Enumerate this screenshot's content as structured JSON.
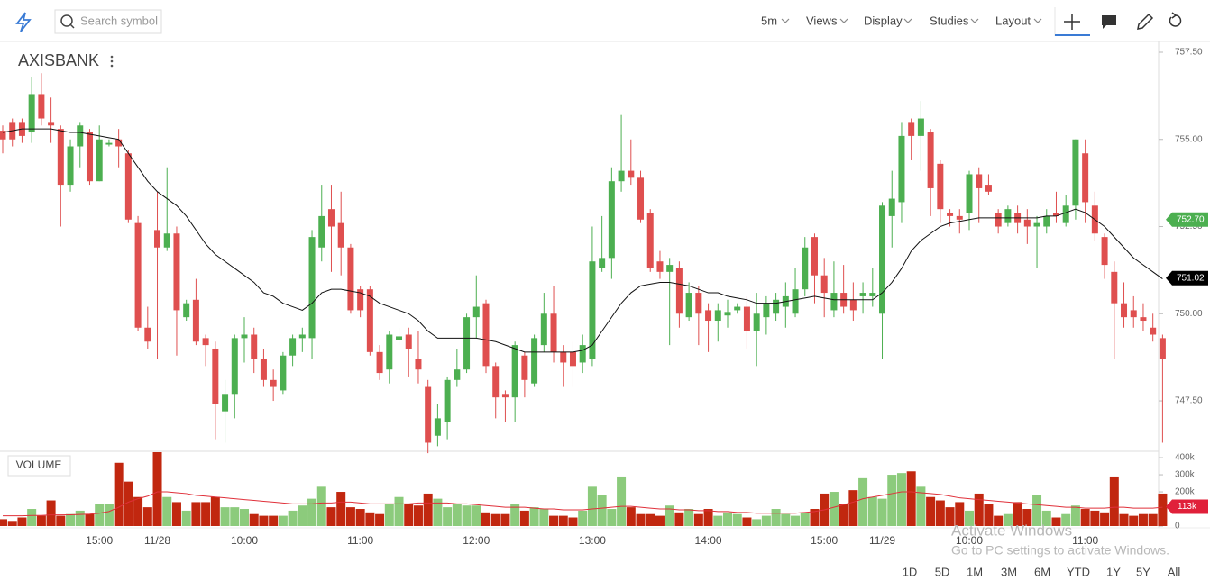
{
  "toolbar": {
    "search_placeholder": "Search symbol",
    "interval": "5m",
    "menus": [
      "Views",
      "Display",
      "Studies",
      "Layout"
    ]
  },
  "chart_data": [
    {
      "type": "candlestick",
      "title": "AXISBANK",
      "up_color": "#4caf50",
      "down_color": "#df4f4f",
      "ma_color": "#111111",
      "categories": [
        null,
        null,
        null,
        null,
        null,
        null,
        null,
        null,
        null,
        null,
        "15:00",
        null,
        null,
        null,
        null,
        null,
        "11/28",
        null,
        null,
        null,
        null,
        null,
        null,
        null,
        null,
        "10:00",
        null,
        null,
        null,
        null,
        null,
        null,
        null,
        null,
        null,
        null,
        null,
        "11:00",
        null,
        null,
        null,
        null,
        null,
        null,
        null,
        null,
        null,
        null,
        null,
        "12:00",
        null,
        null,
        null,
        null,
        null,
        null,
        null,
        null,
        null,
        null,
        null,
        "13:00",
        null,
        null,
        null,
        null,
        null,
        null,
        null,
        null,
        null,
        null,
        null,
        "14:00",
        null,
        null,
        null,
        null,
        null,
        null,
        null,
        null,
        null,
        null,
        null,
        "15:00",
        null,
        null,
        null,
        null,
        null,
        "11/29",
        null,
        null,
        null,
        null,
        null,
        null,
        null,
        null,
        "10:00",
        null,
        null,
        null,
        null,
        null,
        null,
        null,
        null,
        null,
        null,
        null,
        "11:00",
        null,
        null,
        null,
        null,
        null,
        null,
        null,
        null
      ],
      "open": [
        755.25,
        755.5,
        755.5,
        755.2,
        756.3,
        755.5,
        755.3,
        753.7,
        754.8,
        755.2,
        753.8,
        754.85,
        755.0,
        754.6,
        752.6,
        749.6,
        752.4,
        751.9,
        752.3,
        749.9,
        750.4,
        749.3,
        749.0,
        747.2,
        747.7,
        749.3,
        749.4,
        748.7,
        748.1,
        747.8,
        748.8,
        749.3,
        749.3,
        751.9,
        753.0,
        752.6,
        751.9,
        750.7,
        750.7,
        748.9,
        748.4,
        749.25,
        749.4,
        748.7,
        747.9,
        746.5,
        746.9,
        748.1,
        748.4,
        749.9,
        750.3,
        748.5,
        747.7,
        747.6,
        748.8,
        748.0,
        749.1,
        750.0,
        748.9,
        748.9,
        748.6,
        748.7,
        751.3,
        751.6,
        753.8,
        754.1,
        753.9,
        752.9,
        751.5,
        751.2,
        751.3,
        749.9,
        750.6,
        750.1,
        749.8,
        749.95,
        750.1,
        750.2,
        749.5,
        749.9,
        750.0,
        750.2,
        750.0,
        750.7,
        752.2,
        751.1,
        750.1,
        750.6,
        750.4,
        750.5,
        750.5,
        750.0,
        752.8,
        753.2,
        755.5,
        755.1,
        755.2,
        754.3,
        752.9,
        752.8,
        752.9,
        754.0,
        753.7,
        752.9,
        752.6,
        752.9,
        752.7,
        752.5,
        752.5,
        752.9,
        752.6,
        753.1,
        754.6,
        753.1,
        752.2,
        751.2,
        750.3,
        750.1,
        749.9,
        749.6,
        749.3
      ],
      "high": [
        755.4,
        755.6,
        755.6,
        756.8,
        756.9,
        756.2,
        755.4,
        755.0,
        755.5,
        755.3,
        755.4,
        755.0,
        755.3,
        754.7,
        752.8,
        750.2,
        753.5,
        754.2,
        752.5,
        750.4,
        751.0,
        749.4,
        749.2,
        748.1,
        749.4,
        749.9,
        749.6,
        749.0,
        748.4,
        748.9,
        749.4,
        749.6,
        752.4,
        753.7,
        753.7,
        753.5,
        752.0,
        750.8,
        750.8,
        749.1,
        749.5,
        749.6,
        749.6,
        749.5,
        748.1,
        747.4,
        748.2,
        749.0,
        750.0,
        751.1,
        750.4,
        748.6,
        747.8,
        749.2,
        748.9,
        749.4,
        750.6,
        750.8,
        749.1,
        749.2,
        749.4,
        752.5,
        752.8,
        754.2,
        755.7,
        755.0,
        754.1,
        753.0,
        751.8,
        751.6,
        751.5,
        750.9,
        750.8,
        750.3,
        750.3,
        750.4,
        750.3,
        750.5,
        750.6,
        750.5,
        750.6,
        750.9,
        751.3,
        752.2,
        752.3,
        751.6,
        751.5,
        751.4,
        750.9,
        750.9,
        751.3,
        753.2,
        754.1,
        755.5,
        755.6,
        756.1,
        755.3,
        754.4,
        753.0,
        753.0,
        754.1,
        754.2,
        754.0,
        753.0,
        753.1,
        753.1,
        753.0,
        752.8,
        753.0,
        753.5,
        753.4,
        755.0,
        755.0,
        753.5,
        752.3,
        751.5,
        750.9,
        750.5,
        750.3,
        750.0,
        749.4
      ],
      "low": [
        754.6,
        754.8,
        754.9,
        754.9,
        755.4,
        754.9,
        752.5,
        753.5,
        754.2,
        753.7,
        753.8,
        754.8,
        754.2,
        752.6,
        749.5,
        749.0,
        748.7,
        751.8,
        748.8,
        749.8,
        749.1,
        748.5,
        746.4,
        746.3,
        747.0,
        748.6,
        748.3,
        747.9,
        747.5,
        747.7,
        748.5,
        748.9,
        748.7,
        751.5,
        751.2,
        751.1,
        750.0,
        749.9,
        748.8,
        748.1,
        748.0,
        749.1,
        748.2,
        748.0,
        746.0,
        746.2,
        746.4,
        747.9,
        748.3,
        749.3,
        748.3,
        747.0,
        746.9,
        746.9,
        747.6,
        747.9,
        748.9,
        748.6,
        747.9,
        747.9,
        748.3,
        748.5,
        751.2,
        751.0,
        753.5,
        753.7,
        752.6,
        751.2,
        751.0,
        749.1,
        749.6,
        749.8,
        749.1,
        748.9,
        749.2,
        749.6,
        750.0,
        749.0,
        748.5,
        749.4,
        749.8,
        749.6,
        749.9,
        750.5,
        750.3,
        749.9,
        749.9,
        750.0,
        749.8,
        750.0,
        750.2,
        748.7,
        751.9,
        752.6,
        754.4,
        754.1,
        752.8,
        752.6,
        752.5,
        752.3,
        752.4,
        752.6,
        753.4,
        752.3,
        752.5,
        752.3,
        752.0,
        751.3,
        752.3,
        752.6,
        752.5,
        752.7,
        752.6,
        752.1,
        751.0,
        748.7,
        749.6,
        749.6,
        749.5,
        749.2,
        746.3
      ],
      "close": [
        755.0,
        755.0,
        755.1,
        756.3,
        755.6,
        755.4,
        753.7,
        754.8,
        755.4,
        753.8,
        755.0,
        754.9,
        754.8,
        752.7,
        749.6,
        749.2,
        751.9,
        752.3,
        750.1,
        750.3,
        749.2,
        749.1,
        747.4,
        747.7,
        749.3,
        749.4,
        748.7,
        748.1,
        747.9,
        748.8,
        749.3,
        749.4,
        752.2,
        752.8,
        752.5,
        751.9,
        750.1,
        750.1,
        748.9,
        748.3,
        749.4,
        749.35,
        749.0,
        748.4,
        746.3,
        747.0,
        748.1,
        748.4,
        749.9,
        750.2,
        748.5,
        747.6,
        747.6,
        749.1,
        748.1,
        749.3,
        750.0,
        748.9,
        748.6,
        748.5,
        749.1,
        751.5,
        751.6,
        753.8,
        754.1,
        753.9,
        752.7,
        751.3,
        751.2,
        751.4,
        750.0,
        750.6,
        750.0,
        749.8,
        750.1,
        750.05,
        750.2,
        749.5,
        750.0,
        750.3,
        750.4,
        750.5,
        750.7,
        751.9,
        751.1,
        750.6,
        750.6,
        750.2,
        750.1,
        750.6,
        750.6,
        753.1,
        753.3,
        755.1,
        755.1,
        755.6,
        753.6,
        753.0,
        752.8,
        752.7,
        754.0,
        753.6,
        753.5,
        752.5,
        753.0,
        752.6,
        752.5,
        752.6,
        752.8,
        752.8,
        753.1,
        755.0,
        753.2,
        752.3,
        751.4,
        750.3,
        749.9,
        749.9,
        749.8,
        749.4,
        748.7
      ],
      "ma": [
        755.2,
        755.25,
        755.3,
        755.3,
        755.3,
        755.3,
        755.25,
        755.2,
        755.2,
        755.15,
        755.1,
        755.05,
        755.0,
        754.6,
        754.2,
        753.8,
        753.5,
        753.3,
        753.1,
        752.8,
        752.4,
        752.0,
        751.7,
        751.5,
        751.3,
        751.1,
        750.9,
        750.6,
        750.5,
        750.3,
        750.2,
        750.1,
        750.3,
        750.6,
        750.7,
        750.7,
        750.65,
        750.6,
        750.5,
        750.3,
        750.2,
        750.1,
        750.0,
        749.8,
        749.5,
        749.3,
        749.3,
        749.3,
        749.3,
        749.3,
        749.25,
        749.2,
        749.1,
        749.0,
        748.9,
        748.9,
        748.9,
        748.9,
        748.9,
        748.9,
        748.95,
        749.1,
        749.5,
        749.9,
        750.3,
        750.6,
        750.8,
        750.85,
        750.9,
        750.9,
        750.85,
        750.8,
        750.7,
        750.6,
        750.6,
        750.5,
        750.45,
        750.4,
        750.3,
        750.3,
        750.3,
        750.35,
        750.4,
        750.45,
        750.5,
        750.45,
        750.4,
        750.4,
        750.4,
        750.4,
        750.4,
        750.6,
        750.9,
        751.3,
        751.8,
        752.1,
        752.3,
        752.5,
        752.6,
        752.65,
        752.7,
        752.75,
        752.75,
        752.75,
        752.75,
        752.75,
        752.75,
        752.75,
        752.8,
        752.8,
        752.9,
        753.0,
        752.9,
        752.7,
        752.5,
        752.2,
        751.9,
        751.6,
        751.4,
        751.2,
        751.0
      ],
      "ylim": [
        746.08,
        757.81
      ],
      "yticks": [
        {
          "value": 747.5,
          "label": "747.50"
        },
        {
          "value": 750,
          "label": "750.00"
        },
        {
          "value": 752.5,
          "label": "752.50"
        },
        {
          "value": 755,
          "label": "755.00"
        },
        {
          "value": 757.5,
          "label": "757.50"
        }
      ],
      "price_tags": [
        {
          "value": 752.7,
          "label": "752.70",
          "color": "#4caf50"
        },
        {
          "value": 751.02,
          "label": "751.02",
          "color": "#000000"
        }
      ]
    },
    {
      "type": "bar",
      "title": "VOLUME",
      "up_color": "#8ccb7c",
      "down_color": "#c1270f",
      "ma_color": "#e0303a",
      "values": [
        40000,
        30000,
        50000,
        100000,
        60000,
        150000,
        60000,
        70000,
        90000,
        70000,
        130000,
        130000,
        370000,
        260000,
        170000,
        110000,
        432000,
        170000,
        140000,
        90000,
        140000,
        140000,
        170000,
        110000,
        110000,
        100000,
        70000,
        60000,
        60000,
        60000,
        90000,
        120000,
        160000,
        230000,
        110000,
        200000,
        110000,
        100000,
        80000,
        70000,
        130000,
        170000,
        130000,
        120000,
        190000,
        160000,
        110000,
        130000,
        120000,
        120000,
        80000,
        70000,
        70000,
        130000,
        90000,
        110000,
        100000,
        60000,
        60000,
        50000,
        90000,
        230000,
        180000,
        100000,
        290000,
        110000,
        70000,
        70000,
        60000,
        120000,
        80000,
        100000,
        70000,
        100000,
        60000,
        80000,
        70000,
        50000,
        40000,
        60000,
        100000,
        70000,
        60000,
        80000,
        100000,
        190000,
        200000,
        130000,
        210000,
        280000,
        170000,
        160000,
        300000,
        310000,
        320000,
        230000,
        170000,
        150000,
        110000,
        140000,
        90000,
        190000,
        130000,
        60000,
        70000,
        140000,
        100000,
        180000,
        90000,
        50000,
        70000,
        120000,
        100000,
        90000,
        80000,
        290000,
        70000,
        60000,
        70000,
        70000,
        190000
      ],
      "ma": [
        60000,
        60000,
        60000,
        62000,
        62000,
        65000,
        65000,
        66000,
        68000,
        70000,
        75000,
        85000,
        110000,
        140000,
        160000,
        175000,
        200000,
        200000,
        195000,
        190000,
        180000,
        175000,
        170000,
        165000,
        160000,
        155000,
        150000,
        145000,
        140000,
        135000,
        130000,
        130000,
        130000,
        135000,
        135000,
        140000,
        140000,
        135000,
        130000,
        130000,
        130000,
        130000,
        130000,
        135000,
        135000,
        135000,
        135000,
        130000,
        130000,
        125000,
        120000,
        115000,
        110000,
        110000,
        110000,
        105000,
        100000,
        100000,
        95000,
        95000,
        95000,
        100000,
        105000,
        110000,
        115000,
        115000,
        110000,
        105000,
        100000,
        100000,
        95000,
        95000,
        90000,
        90000,
        85000,
        85000,
        80000,
        80000,
        75000,
        75000,
        75000,
        75000,
        75000,
        80000,
        85000,
        95000,
        110000,
        125000,
        140000,
        160000,
        170000,
        180000,
        190000,
        200000,
        200000,
        195000,
        190000,
        185000,
        175000,
        165000,
        160000,
        155000,
        150000,
        145000,
        140000,
        135000,
        130000,
        125000,
        120000,
        115000,
        110000,
        110000,
        105000,
        105000,
        105000,
        110000,
        110000,
        105000,
        105000,
        105000,
        110000
      ],
      "ylim": [
        0,
        432000
      ],
      "yticks": [
        0,
        {
          "value": 100000,
          "label": "100k"
        },
        {
          "value": 200000,
          "label": "200k"
        },
        {
          "value": 300000,
          "label": "300k"
        },
        {
          "value": 400000,
          "label": "400k"
        }
      ],
      "value_tag": {
        "value": 113000,
        "label": "113k",
        "color": "#e0203a"
      }
    }
  ],
  "range_buttons": [
    "1D",
    "5D",
    "1M",
    "3M",
    "6M",
    "YTD",
    "1Y",
    "5Y",
    "All"
  ],
  "watermark": {
    "title": "Activate Windows",
    "subtitle": "Go to PC settings to activate Windows."
  }
}
